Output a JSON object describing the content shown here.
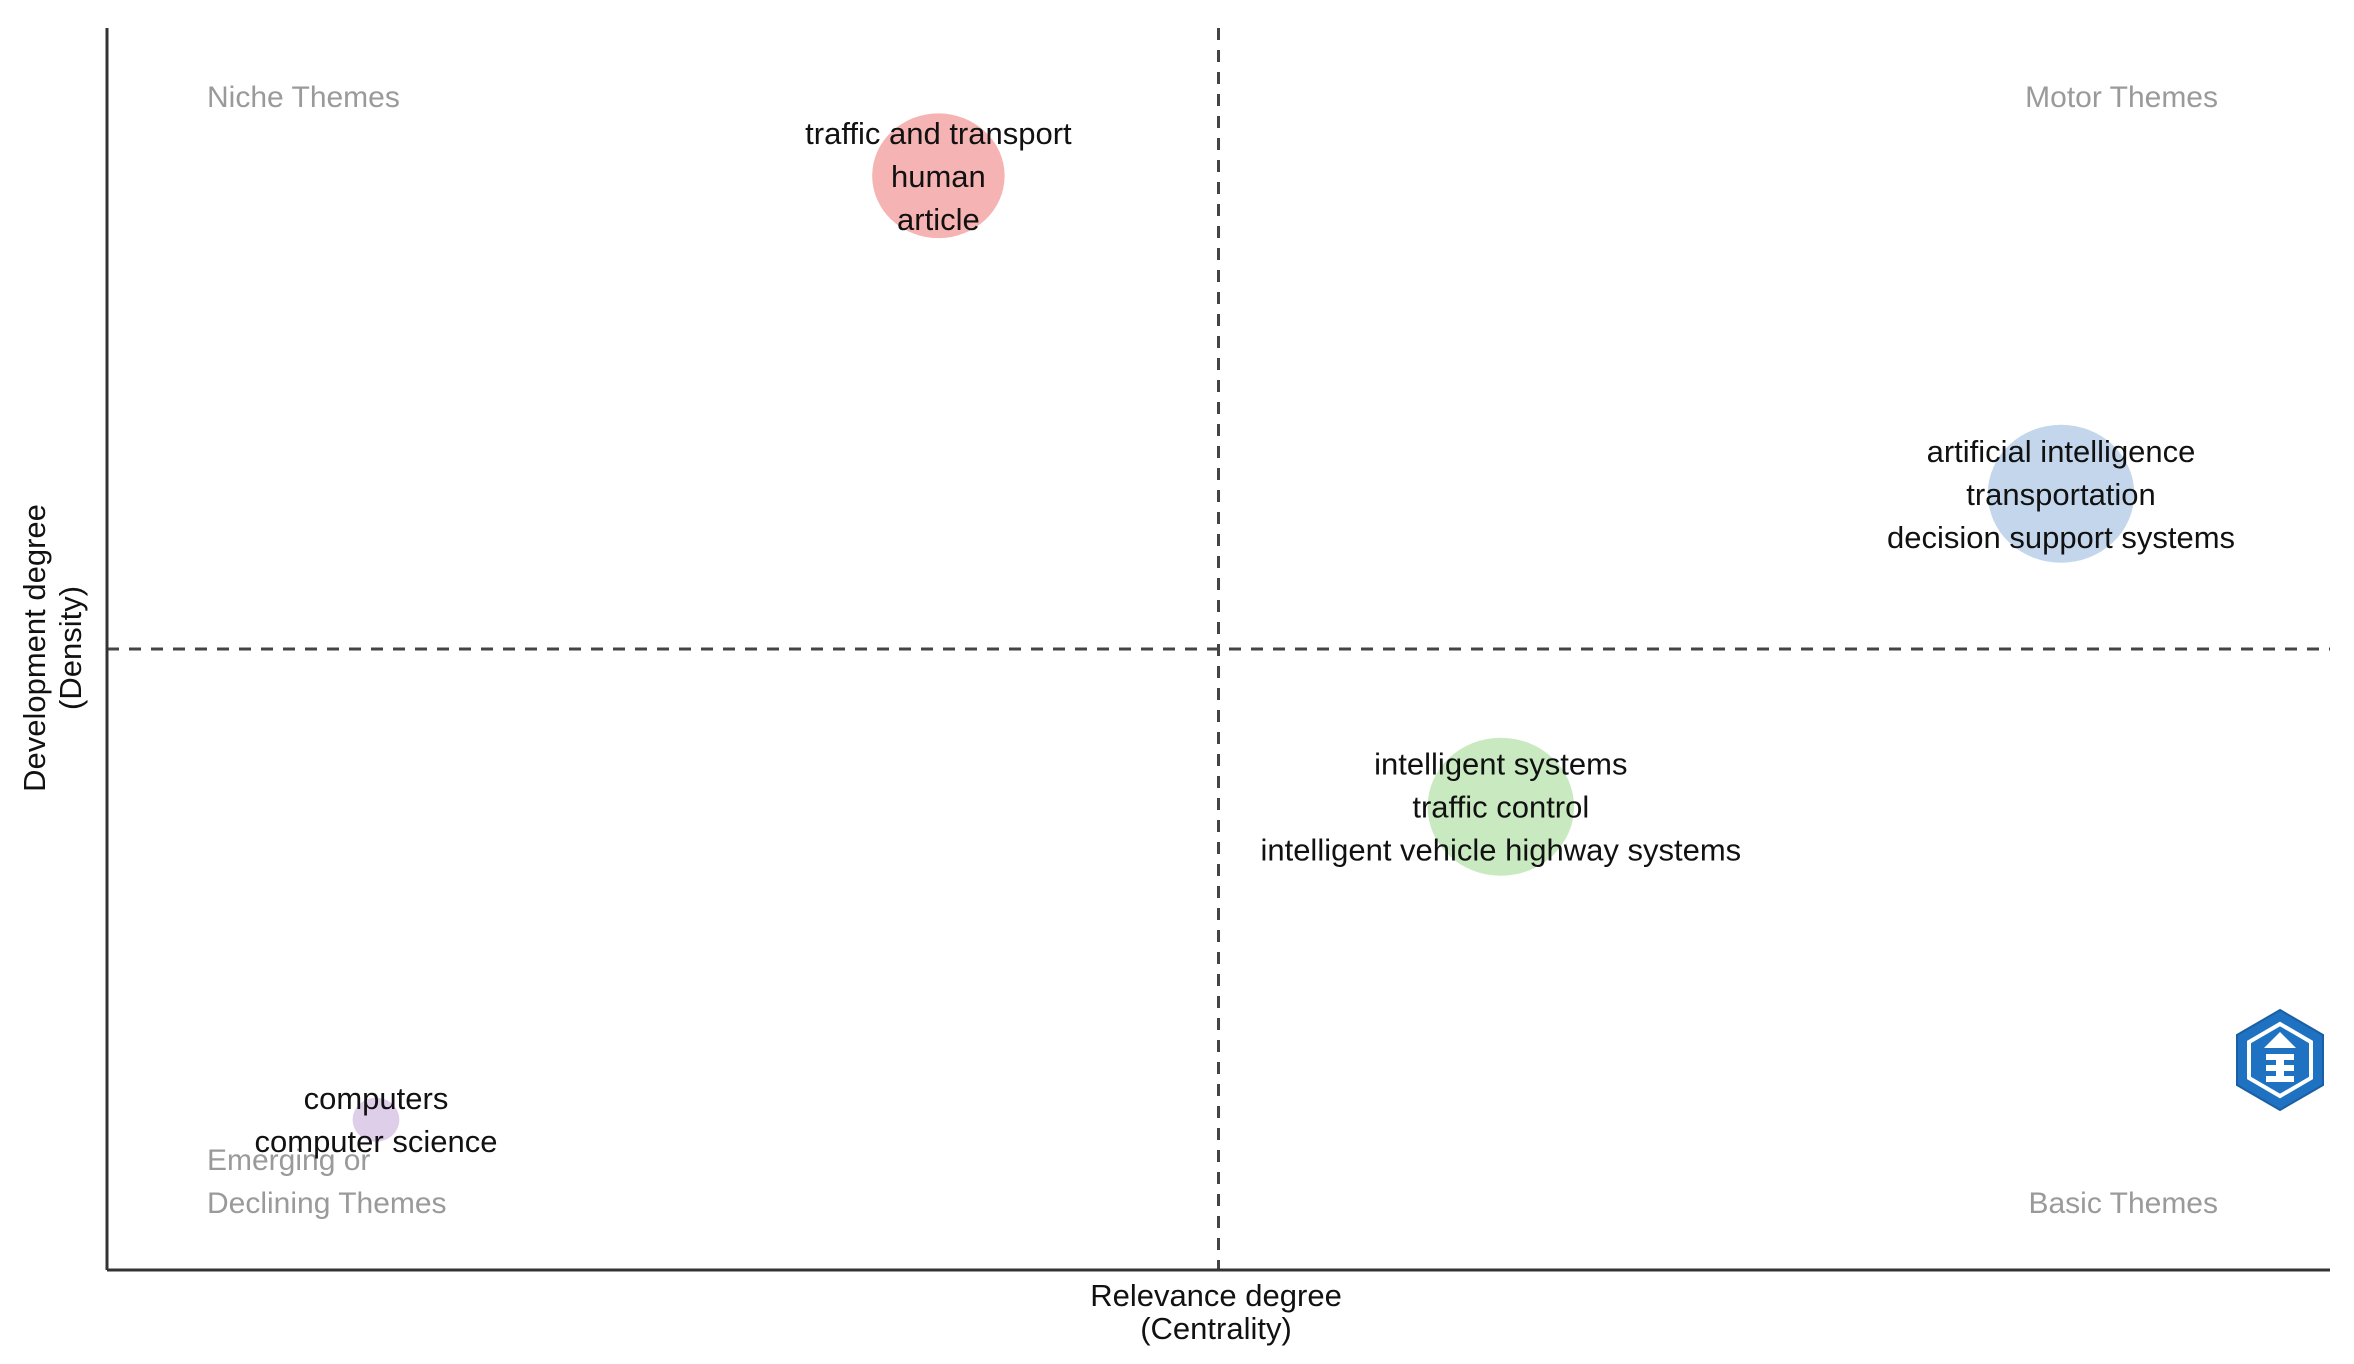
{
  "chart_data": {
    "type": "scatter",
    "title": "",
    "xlabel": "Relevance degree",
    "xlabel_sub": "(Centrality)",
    "ylabel": "Development degree",
    "ylabel_sub": "(Density)",
    "xlim": [
      0,
      1
    ],
    "ylim": [
      0,
      1
    ],
    "x_divider": 0.5,
    "y_divider": 0.5,
    "grid": false,
    "legend": "none",
    "quadrants": {
      "top_left": [
        "Niche Themes"
      ],
      "top_right": [
        "Motor Themes"
      ],
      "bottom_left": [
        "Emerging or",
        "Declining Themes"
      ],
      "bottom_right": [
        "Basic Themes"
      ]
    },
    "clusters": [
      {
        "terms": [
          "traffic and transport",
          "human",
          "article"
        ],
        "x": 0.374,
        "y": 0.881,
        "size": 0.58,
        "color": "#f4a6a6"
      },
      {
        "terms": [
          "artificial intelligence",
          "transportation",
          "decision support systems"
        ],
        "x": 0.879,
        "y": 0.625,
        "size": 0.66,
        "color": "#b8cfe8"
      },
      {
        "terms": [
          "intelligent systems",
          "traffic control",
          "intelligent vehicle highway systems"
        ],
        "x": 0.627,
        "y": 0.373,
        "size": 0.66,
        "color": "#bfe5b5"
      },
      {
        "terms": [
          "computers",
          "computer science"
        ],
        "x": 0.121,
        "y": 0.121,
        "size": 0.09,
        "color": "#d8c6e6"
      }
    ]
  }
}
